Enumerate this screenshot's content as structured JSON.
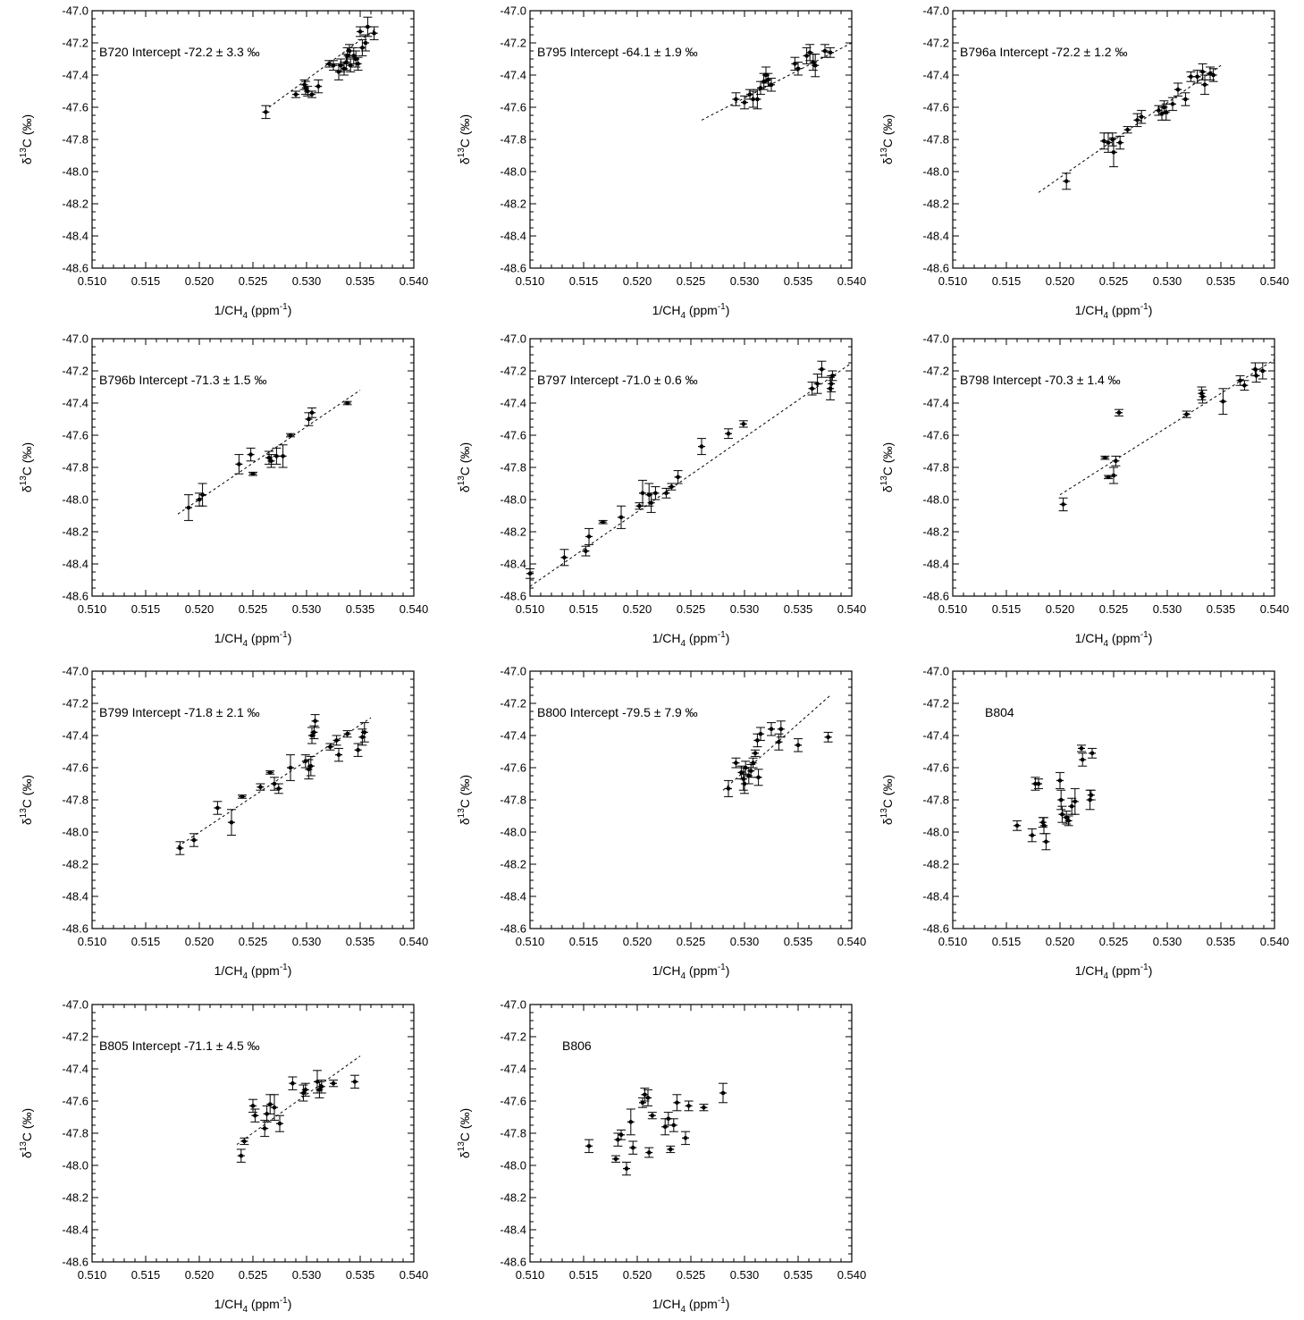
{
  "figure": {
    "axes": {
      "xlabel": "1/CH",
      "xlabel_sub": "4",
      "xlabel_unit_pre": " (ppm",
      "xlabel_unit_sup": "-1",
      "xlabel_unit_post": ")",
      "ylabel_delta": "δ",
      "ylabel_sup": "13",
      "ylabel_rest": "C (‰)",
      "xlim": [
        0.51,
        0.54
      ],
      "ylim": [
        -48.6,
        -47.0
      ],
      "xticks": [
        "0.510",
        "0.515",
        "0.520",
        "0.525",
        "0.530",
        "0.535",
        "0.540"
      ],
      "yticks": [
        "-47.0",
        "-47.2",
        "-47.4",
        "-47.6",
        "-47.8",
        "-48.0",
        "-48.2",
        "-48.4",
        "-48.6"
      ]
    }
  },
  "chart_data": [
    {
      "type": "scatter",
      "title": "B720 Intercept -72.2 ± 3.3 ‰",
      "fit": [
        [
          0.5265,
          -47.6
        ],
        [
          0.5365,
          -47.11
        ]
      ],
      "points": [
        [
          0.5262,
          -47.63,
          0.04
        ],
        [
          0.529,
          -47.52,
          0.02
        ],
        [
          0.5298,
          -47.46,
          0.03
        ],
        [
          0.5299,
          -47.48,
          0.04
        ],
        [
          0.5301,
          -47.5,
          0.03
        ],
        [
          0.5305,
          -47.52,
          0.02
        ],
        [
          0.5311,
          -47.47,
          0.04
        ],
        [
          0.5321,
          -47.33,
          0.02
        ],
        [
          0.5325,
          -47.34,
          0.03
        ],
        [
          0.533,
          -47.38,
          0.05
        ],
        [
          0.5332,
          -47.34,
          0.04
        ],
        [
          0.5335,
          -47.36,
          0.04
        ],
        [
          0.5337,
          -47.32,
          0.05
        ],
        [
          0.5338,
          -47.28,
          0.05
        ],
        [
          0.534,
          -47.25,
          0.04
        ],
        [
          0.5341,
          -47.34,
          0.04
        ],
        [
          0.5344,
          -47.28,
          0.05
        ],
        [
          0.5346,
          -47.3,
          0.05
        ],
        [
          0.5348,
          -47.33,
          0.04
        ],
        [
          0.535,
          -47.13,
          0.03
        ],
        [
          0.5352,
          -47.23,
          0.05
        ],
        [
          0.5355,
          -47.2,
          0.05
        ],
        [
          0.5357,
          -47.1,
          0.06
        ],
        [
          0.5363,
          -47.14,
          0.04
        ]
      ]
    },
    {
      "type": "scatter",
      "title": "B795 Intercept -64.1 ± 1.9 ‰",
      "fit": [
        [
          0.526,
          -47.68
        ],
        [
          0.54,
          -47.2
        ]
      ],
      "points": [
        [
          0.5292,
          -47.55,
          0.04
        ],
        [
          0.53,
          -47.57,
          0.04
        ],
        [
          0.5305,
          -47.52,
          0.03
        ],
        [
          0.5308,
          -47.55,
          0.05
        ],
        [
          0.5312,
          -47.55,
          0.06
        ],
        [
          0.5315,
          -47.48,
          0.04
        ],
        [
          0.5318,
          -47.44,
          0.05
        ],
        [
          0.532,
          -47.4,
          0.05
        ],
        [
          0.5322,
          -47.43,
          0.04
        ],
        [
          0.5325,
          -47.46,
          0.04
        ],
        [
          0.5347,
          -47.33,
          0.04
        ],
        [
          0.535,
          -47.36,
          0.04
        ],
        [
          0.5358,
          -47.28,
          0.05
        ],
        [
          0.5361,
          -47.26,
          0.05
        ],
        [
          0.5364,
          -47.32,
          0.05
        ],
        [
          0.5366,
          -47.34,
          0.07
        ],
        [
          0.5375,
          -47.25,
          0.04
        ],
        [
          0.538,
          -47.26,
          0.03
        ]
      ]
    },
    {
      "type": "scatter",
      "title": "B796a Intercept -72.2 ± 1.2 ‰",
      "fit": [
        [
          0.518,
          -48.13
        ],
        [
          0.535,
          -47.34
        ]
      ],
      "points": [
        [
          0.5206,
          -48.06,
          0.05
        ],
        [
          0.5241,
          -47.81,
          0.05
        ],
        [
          0.5245,
          -47.82,
          0.06
        ],
        [
          0.5249,
          -47.8,
          0.04
        ],
        [
          0.525,
          -47.88,
          0.09
        ],
        [
          0.5256,
          -47.82,
          0.04
        ],
        [
          0.5263,
          -47.74,
          0.02
        ],
        [
          0.5272,
          -47.68,
          0.04
        ],
        [
          0.5276,
          -47.66,
          0.04
        ],
        [
          0.5292,
          -47.62,
          0.03
        ],
        [
          0.5295,
          -47.64,
          0.04
        ],
        [
          0.5297,
          -47.6,
          0.04
        ],
        [
          0.5299,
          -47.63,
          0.05
        ],
        [
          0.5305,
          -47.58,
          0.04
        ],
        [
          0.531,
          -47.49,
          0.04
        ],
        [
          0.5317,
          -47.55,
          0.04
        ],
        [
          0.5322,
          -47.41,
          0.03
        ],
        [
          0.5328,
          -47.41,
          0.04
        ],
        [
          0.5333,
          -47.38,
          0.05
        ],
        [
          0.5335,
          -47.46,
          0.06
        ],
        [
          0.534,
          -47.39,
          0.04
        ],
        [
          0.5343,
          -47.4,
          0.04
        ]
      ]
    },
    {
      "type": "scatter",
      "title": "B796b Intercept -71.3 ± 1.5 ‰",
      "fit": [
        [
          0.518,
          -48.09
        ],
        [
          0.535,
          -47.32
        ]
      ],
      "points": [
        [
          0.519,
          -48.05,
          0.08
        ],
        [
          0.52,
          -48.0,
          0.04
        ],
        [
          0.5203,
          -47.97,
          0.07
        ],
        [
          0.5237,
          -47.78,
          0.06
        ],
        [
          0.5248,
          -47.72,
          0.04
        ],
        [
          0.525,
          -47.84,
          0.01
        ],
        [
          0.5265,
          -47.74,
          0.04
        ],
        [
          0.5267,
          -47.76,
          0.04
        ],
        [
          0.5272,
          -47.73,
          0.05
        ],
        [
          0.5278,
          -47.73,
          0.07
        ],
        [
          0.5285,
          -47.6,
          0.01
        ],
        [
          0.5302,
          -47.5,
          0.04
        ],
        [
          0.5305,
          -47.46,
          0.03
        ],
        [
          0.5338,
          -47.4,
          0.01
        ]
      ]
    },
    {
      "type": "scatter",
      "title": "B797 Intercept -71.0 ± 0.6 ‰",
      "fit": [
        [
          0.51,
          -48.54
        ],
        [
          0.54,
          -47.15
        ]
      ],
      "points": [
        [
          0.51,
          -48.46,
          0.03
        ],
        [
          0.5132,
          -48.36,
          0.05
        ],
        [
          0.5152,
          -48.32,
          0.03
        ],
        [
          0.5155,
          -48.23,
          0.05
        ],
        [
          0.5168,
          -48.14,
          0.01
        ],
        [
          0.5185,
          -48.11,
          0.07
        ],
        [
          0.5202,
          -48.04,
          0.02
        ],
        [
          0.5205,
          -47.96,
          0.08
        ],
        [
          0.5211,
          -47.97,
          0.07
        ],
        [
          0.5213,
          -48.02,
          0.06
        ],
        [
          0.5217,
          -47.96,
          0.04
        ],
        [
          0.5227,
          -47.96,
          0.03
        ],
        [
          0.5232,
          -47.92,
          0.02
        ],
        [
          0.5238,
          -47.86,
          0.04
        ],
        [
          0.526,
          -47.67,
          0.05
        ],
        [
          0.5285,
          -47.59,
          0.03
        ],
        [
          0.5299,
          -47.53,
          0.02
        ],
        [
          0.5363,
          -47.31,
          0.04
        ],
        [
          0.5368,
          -47.28,
          0.06
        ],
        [
          0.5372,
          -47.19,
          0.05
        ],
        [
          0.538,
          -47.31,
          0.07
        ],
        [
          0.5381,
          -47.28,
          0.05
        ],
        [
          0.5382,
          -47.23,
          0.03
        ]
      ]
    },
    {
      "type": "scatter",
      "title": "B798 Intercept -70.3 ± 1.4 ‰",
      "fit": [
        [
          0.52,
          -47.97
        ],
        [
          0.54,
          -47.13
        ]
      ],
      "points": [
        [
          0.5203,
          -48.03,
          0.04
        ],
        [
          0.5242,
          -47.74,
          0.01
        ],
        [
          0.5245,
          -47.86,
          0.01
        ],
        [
          0.525,
          -47.85,
          0.05
        ],
        [
          0.5252,
          -47.76,
          0.03
        ],
        [
          0.5255,
          -47.46,
          0.02
        ],
        [
          0.5318,
          -47.47,
          0.02
        ],
        [
          0.5332,
          -47.34,
          0.04
        ],
        [
          0.5333,
          -47.36,
          0.04
        ],
        [
          0.5352,
          -47.39,
          0.08
        ],
        [
          0.5368,
          -47.26,
          0.03
        ],
        [
          0.5372,
          -47.29,
          0.03
        ],
        [
          0.5382,
          -47.19,
          0.04
        ],
        [
          0.5383,
          -47.23,
          0.04
        ],
        [
          0.5389,
          -47.2,
          0.05
        ]
      ]
    },
    {
      "type": "scatter",
      "title": "B799 Intercept -71.8 ± 2.1 ‰",
      "fit": [
        [
          0.518,
          -48.09
        ],
        [
          0.536,
          -47.29
        ]
      ],
      "points": [
        [
          0.5182,
          -48.1,
          0.04
        ],
        [
          0.5195,
          -48.05,
          0.04
        ],
        [
          0.5217,
          -47.85,
          0.04
        ],
        [
          0.523,
          -47.94,
          0.08
        ],
        [
          0.524,
          -47.78,
          0.01
        ],
        [
          0.5257,
          -47.72,
          0.02
        ],
        [
          0.5266,
          -47.63,
          0.01
        ],
        [
          0.527,
          -47.7,
          0.04
        ],
        [
          0.5274,
          -47.73,
          0.03
        ],
        [
          0.5285,
          -47.6,
          0.08
        ],
        [
          0.5299,
          -47.56,
          0.04
        ],
        [
          0.5302,
          -47.61,
          0.06
        ],
        [
          0.5304,
          -47.59,
          0.06
        ],
        [
          0.5305,
          -47.4,
          0.05
        ],
        [
          0.5307,
          -47.38,
          0.04
        ],
        [
          0.5308,
          -47.31,
          0.04
        ],
        [
          0.5322,
          -47.47,
          0.02
        ],
        [
          0.5328,
          -47.43,
          0.03
        ],
        [
          0.533,
          -47.52,
          0.04
        ],
        [
          0.5338,
          -47.39,
          0.02
        ],
        [
          0.5348,
          -47.49,
          0.04
        ],
        [
          0.5352,
          -47.41,
          0.05
        ],
        [
          0.5354,
          -47.38,
          0.06
        ]
      ]
    },
    {
      "type": "scatter",
      "title": "B800 Intercept -79.5 ± 7.9 ‰",
      "fit": [
        [
          0.528,
          -47.74
        ],
        [
          0.538,
          -47.15
        ]
      ],
      "points": [
        [
          0.5285,
          -47.73,
          0.05
        ],
        [
          0.5292,
          -47.57,
          0.03
        ],
        [
          0.5297,
          -47.63,
          0.04
        ],
        [
          0.5299,
          -47.67,
          0.07
        ],
        [
          0.53,
          -47.7,
          0.06
        ],
        [
          0.5301,
          -47.6,
          0.04
        ],
        [
          0.5304,
          -47.65,
          0.05
        ],
        [
          0.5306,
          -47.62,
          0.04
        ],
        [
          0.5308,
          -47.57,
          0.03
        ],
        [
          0.531,
          -47.51,
          0.02
        ],
        [
          0.5312,
          -47.43,
          0.04
        ],
        [
          0.5313,
          -47.66,
          0.05
        ],
        [
          0.5315,
          -47.39,
          0.04
        ],
        [
          0.5325,
          -47.36,
          0.04
        ],
        [
          0.5332,
          -47.44,
          0.05
        ],
        [
          0.5334,
          -47.36,
          0.05
        ],
        [
          0.535,
          -47.46,
          0.04
        ],
        [
          0.5378,
          -47.41,
          0.03
        ]
      ]
    },
    {
      "type": "scatter",
      "title": "B804",
      "fit": null,
      "points": [
        [
          0.516,
          -47.96,
          0.03
        ],
        [
          0.5174,
          -48.02,
          0.04
        ],
        [
          0.5177,
          -47.7,
          0.04
        ],
        [
          0.518,
          -47.7,
          0.03
        ],
        [
          0.5184,
          -47.94,
          0.03
        ],
        [
          0.5185,
          -47.96,
          0.05
        ],
        [
          0.5187,
          -48.06,
          0.05
        ],
        [
          0.52,
          -47.68,
          0.05
        ],
        [
          0.5201,
          -47.8,
          0.06
        ],
        [
          0.5202,
          -47.89,
          0.05
        ],
        [
          0.5206,
          -47.91,
          0.04
        ],
        [
          0.5208,
          -47.93,
          0.03
        ],
        [
          0.5211,
          -47.84,
          0.05
        ],
        [
          0.5214,
          -47.81,
          0.08
        ],
        [
          0.522,
          -47.48,
          0.02
        ],
        [
          0.5221,
          -47.55,
          0.04
        ],
        [
          0.5228,
          -47.8,
          0.06
        ],
        [
          0.5229,
          -47.77,
          0.03
        ],
        [
          0.523,
          -47.51,
          0.03
        ]
      ]
    },
    {
      "type": "scatter",
      "title": "B805 Intercept -71.1 ± 4.5 ‰",
      "fit": [
        [
          0.5235,
          -47.87
        ],
        [
          0.535,
          -47.32
        ]
      ],
      "points": [
        [
          0.5239,
          -47.94,
          0.04
        ],
        [
          0.5242,
          -47.85,
          0.02
        ],
        [
          0.525,
          -47.63,
          0.04
        ],
        [
          0.5252,
          -47.69,
          0.04
        ],
        [
          0.5261,
          -47.77,
          0.05
        ],
        [
          0.5263,
          -47.68,
          0.05
        ],
        [
          0.5266,
          -47.62,
          0.06
        ],
        [
          0.527,
          -47.64,
          0.08
        ],
        [
          0.5275,
          -47.74,
          0.05
        ],
        [
          0.5287,
          -47.49,
          0.04
        ],
        [
          0.5297,
          -47.55,
          0.05
        ],
        [
          0.5299,
          -47.53,
          0.04
        ],
        [
          0.531,
          -47.48,
          0.07
        ],
        [
          0.5312,
          -47.53,
          0.05
        ],
        [
          0.5314,
          -47.51,
          0.04
        ],
        [
          0.5325,
          -47.49,
          0.02
        ],
        [
          0.5345,
          -47.48,
          0.04
        ]
      ]
    },
    {
      "type": "scatter",
      "title": "B806",
      "fit": null,
      "points": [
        [
          0.5155,
          -47.88,
          0.04
        ],
        [
          0.518,
          -47.96,
          0.02
        ],
        [
          0.5182,
          -47.84,
          0.04
        ],
        [
          0.5185,
          -47.81,
          0.03
        ],
        [
          0.519,
          -48.02,
          0.04
        ],
        [
          0.5194,
          -47.73,
          0.08
        ],
        [
          0.5196,
          -47.89,
          0.04
        ],
        [
          0.5205,
          -47.61,
          0.03
        ],
        [
          0.5207,
          -47.56,
          0.04
        ],
        [
          0.521,
          -47.58,
          0.05
        ],
        [
          0.5211,
          -47.92,
          0.03
        ],
        [
          0.5214,
          -47.69,
          0.02
        ],
        [
          0.5226,
          -47.76,
          0.05
        ],
        [
          0.5229,
          -47.71,
          0.04
        ],
        [
          0.5231,
          -47.9,
          0.02
        ],
        [
          0.5234,
          -47.75,
          0.04
        ],
        [
          0.5237,
          -47.61,
          0.05
        ],
        [
          0.5245,
          -47.83,
          0.04
        ],
        [
          0.5248,
          -47.63,
          0.03
        ],
        [
          0.5262,
          -47.64,
          0.02
        ],
        [
          0.528,
          -47.55,
          0.06
        ]
      ]
    }
  ]
}
